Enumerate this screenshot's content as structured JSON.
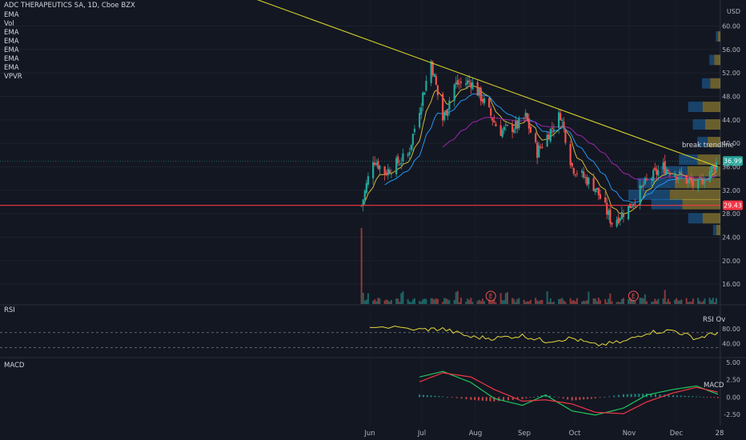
{
  "header": {
    "title": "ADC THERAPEUTICS SA, 1D, Cboe BZX",
    "indicators": [
      "EMA",
      "Vol",
      "EMA",
      "EMA",
      "EMA",
      "EMA",
      "EMA",
      "VPVR"
    ]
  },
  "currency": "USD",
  "panes": {
    "rsi_label": "RSI",
    "macd_label": "MACD",
    "rsi_overlay_text": "RSI Ov",
    "macd_overlay_text": "MACD"
  },
  "annotations": {
    "trendline_note": "break trendline",
    "earnings_marker": "E"
  },
  "colors": {
    "background": "#131722",
    "up": "#26a69a",
    "down": "#ef5350",
    "trendline": "#d4d02a",
    "support": "#f23645",
    "rsi": "#e3d73c",
    "macd_line": "#22c55e",
    "signal_line": "#f23645",
    "ema_fast": "#d4b83a",
    "ema_slow": "#2196f3",
    "ema_long": "#9c27b0"
  },
  "chart_data": [
    {
      "type": "candlestick",
      "pane": "price",
      "y_axis_ticks": [
        "60.00",
        "56.00",
        "52.00",
        "48.00",
        "44.00",
        "40.00",
        "36.00",
        "32.00",
        "28.00",
        "24.00",
        "20.00",
        "16.00"
      ],
      "x_axis_ticks": [
        "Jun",
        "Jul",
        "Aug",
        "Sep",
        "Oct",
        "Nov",
        "Dec",
        "28"
      ],
      "ylim": [
        14,
        63
      ],
      "price_path": [
        {
          "date": "May 27",
          "price": 29.4
        },
        {
          "date": "Jun 03",
          "price": 37.5
        },
        {
          "date": "Jun 10",
          "price": 35.0
        },
        {
          "date": "Jun 24",
          "price": 38.0
        },
        {
          "date": "Jul 01",
          "price": 46.0
        },
        {
          "date": "Jul 08",
          "price": 54.0
        },
        {
          "date": "Jul 15",
          "price": 44.0
        },
        {
          "date": "Jul 22",
          "price": 50.0
        },
        {
          "date": "Aug 01",
          "price": 50.5
        },
        {
          "date": "Aug 08",
          "price": 47.5
        },
        {
          "date": "Aug 18",
          "price": 42.0
        },
        {
          "date": "Aug 29",
          "price": 43.0
        },
        {
          "date": "Sep 03",
          "price": 44.5
        },
        {
          "date": "Sep 10",
          "price": 38.5
        },
        {
          "date": "Sep 24",
          "price": 45.0
        },
        {
          "date": "Oct 01",
          "price": 36.0
        },
        {
          "date": "Oct 15",
          "price": 32.5
        },
        {
          "date": "Oct 25",
          "price": 26.5
        },
        {
          "date": "Nov 04",
          "price": 29.0
        },
        {
          "date": "Nov 15",
          "price": 33.5
        },
        {
          "date": "Nov 25",
          "price": 36.0
        },
        {
          "date": "Dec 05",
          "price": 34.5
        },
        {
          "date": "Dec 15",
          "price": 32.5
        },
        {
          "date": "Dec 28",
          "price": 36.99
        }
      ],
      "last_price": "36.99",
      "support_level": {
        "price": 29.43,
        "label": "29.43"
      },
      "trendline": [
        {
          "date": "Mar 25",
          "price": 64.5
        },
        {
          "date": "Dec 28",
          "price": 36.0
        }
      ],
      "moving_averages": [
        {
          "name": "EMA fast",
          "color": "#d4b83a"
        },
        {
          "name": "EMA slow",
          "color": "#2196f3"
        },
        {
          "name": "EMA long",
          "color": "#9c27b0"
        }
      ],
      "volume_profile": [
        {
          "price": 58,
          "volume": 0.05
        },
        {
          "price": 54,
          "volume": 0.12
        },
        {
          "price": 50,
          "volume": 0.2
        },
        {
          "price": 46,
          "volume": 0.35
        },
        {
          "price": 43,
          "volume": 0.3
        },
        {
          "price": 40,
          "volume": 0.25
        },
        {
          "price": 37,
          "volume": 0.45
        },
        {
          "price": 35,
          "volume": 0.65
        },
        {
          "price": 33,
          "volume": 0.9
        },
        {
          "price": 31,
          "volume": 1.0
        },
        {
          "price": 29.4,
          "volume": 0.75
        },
        {
          "price": 27,
          "volume": 0.35
        },
        {
          "price": 25,
          "volume": 0.08
        }
      ],
      "earnings_dates": [
        "Aug 13",
        "Nov 07"
      ]
    },
    {
      "type": "line",
      "pane": "rsi",
      "name": "RSI",
      "y_axis_ticks": [
        "80.00",
        "40.00"
      ],
      "ylim": [
        20,
        95
      ],
      "bands": [
        70,
        30
      ],
      "x": [
        "Jun 01",
        "Jul 01",
        "Jul 15",
        "Aug 01",
        "Aug 15",
        "Sep 01",
        "Sep 15",
        "Oct 01",
        "Oct 15",
        "Nov 01",
        "Nov 15",
        "Dec 01",
        "Dec 15",
        "Dec 28"
      ],
      "values": [
        88,
        78,
        80,
        58,
        55,
        62,
        47,
        55,
        36,
        45,
        70,
        76,
        54,
        71
      ]
    },
    {
      "type": "line",
      "pane": "macd",
      "y_axis_ticks": [
        "5.00",
        "2.50",
        "0.00",
        "-2.50"
      ],
      "ylim": [
        -3.5,
        6
      ],
      "x": [
        "Jul 01",
        "Jul 15",
        "Aug 01",
        "Aug 15",
        "Sep 01",
        "Sep 15",
        "Oct 01",
        "Oct 15",
        "Nov 01",
        "Nov 15",
        "Dec 01",
        "Dec 15",
        "Dec 28"
      ],
      "series": [
        {
          "name": "MACD",
          "values": [
            2.9,
            3.7,
            2.1,
            -0.2,
            -1.2,
            0.3,
            -2.0,
            -2.6,
            -1.6,
            0.3,
            1.1,
            1.6,
            0.4
          ]
        },
        {
          "name": "Signal",
          "values": [
            2.2,
            3.5,
            2.9,
            1.1,
            -0.6,
            -0.4,
            -1.0,
            -2.2,
            -2.4,
            -0.7,
            0.6,
            1.4,
            0.7
          ]
        }
      ]
    },
    {
      "type": "bar",
      "pane": "volume",
      "series_label": "Volume",
      "note": "relative daily volume"
    }
  ]
}
